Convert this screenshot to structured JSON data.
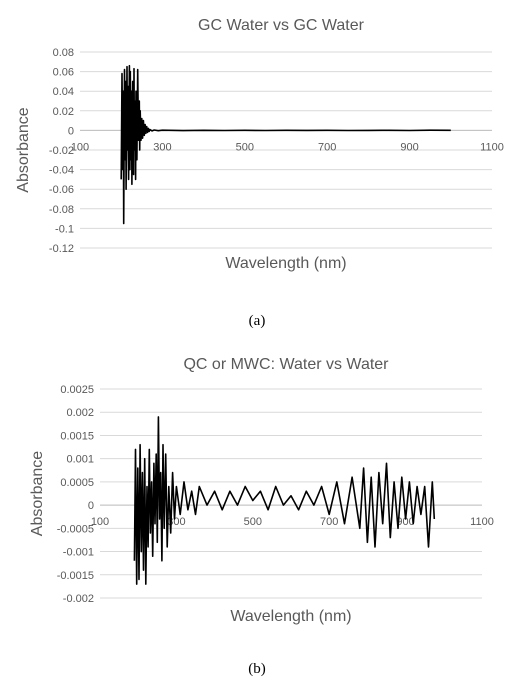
{
  "chart_data": [
    {
      "type": "line",
      "title": "GC Water vs GC Water",
      "xlabel": "Wavelength (nm)",
      "ylabel": "Absorbance",
      "caption": "(a)",
      "xlim": [
        100,
        1100
      ],
      "ylim": [
        -0.12,
        0.08
      ],
      "xticks": [
        100,
        300,
        500,
        700,
        900,
        1100
      ],
      "xtick_labels": [
        "100",
        "300",
        "500",
        "700",
        "900",
        "1100"
      ],
      "yticks": [
        -0.12,
        -0.1,
        -0.08,
        -0.06,
        -0.04,
        -0.02,
        0,
        0.02,
        0.04,
        0.06,
        0.08
      ],
      "ytick_labels": [
        "-0.12",
        "-0.1",
        "-0.08",
        "-0.06",
        "-0.04",
        "-0.02",
        "0",
        "0.02",
        "0.04",
        "0.06",
        "0.08"
      ],
      "grid": true,
      "series": [
        {
          "x": [
            200,
            202,
            204,
            205,
            206,
            208,
            210,
            211,
            212,
            214,
            215,
            216,
            218,
            220,
            221,
            222,
            224,
            225,
            226,
            228,
            230,
            231,
            232,
            234,
            235,
            236,
            238,
            240,
            242,
            244,
            245,
            246,
            248,
            250,
            252,
            254,
            256,
            258,
            260,
            262,
            264,
            266,
            268,
            270,
            275,
            280,
            290,
            300,
            350,
            400,
            450,
            500,
            550,
            600,
            650,
            700,
            750,
            800,
            850,
            900,
            950,
            1000
          ],
          "values": [
            -0.05,
            0.058,
            -0.04,
            0.04,
            -0.095,
            0.062,
            -0.03,
            0.05,
            -0.06,
            0.065,
            -0.02,
            0.045,
            -0.05,
            0.066,
            -0.04,
            0.06,
            -0.03,
            0.04,
            -0.055,
            0.05,
            -0.045,
            0.063,
            -0.02,
            0.03,
            -0.05,
            0.04,
            -0.03,
            0.062,
            -0.01,
            0.03,
            -0.02,
            0.02,
            -0.01,
            0.012,
            -0.008,
            0.01,
            -0.005,
            0.006,
            -0.003,
            0.004,
            -0.002,
            0.002,
            -0.001,
            0.0008,
            -0.0005,
            0.0004,
            -0.0003,
            0.0002,
            -0.0002,
            0.0001,
            -0.0001,
            0.0001,
            -0.0001,
            0.0001,
            0,
            0.0001,
            -0.0001,
            0,
            0.0001,
            -0.0001,
            0.0002,
            0.0001
          ]
        }
      ]
    },
    {
      "type": "line",
      "title": "QC or MWC: Water vs Water",
      "xlabel": "Wavelength (nm)",
      "ylabel": "Absorbance",
      "caption": "(b)",
      "xlim": [
        100,
        1100
      ],
      "ylim": [
        -0.002,
        0.0025
      ],
      "xticks": [
        100,
        300,
        500,
        700,
        900,
        1100
      ],
      "xtick_labels": [
        "100",
        "300",
        "500",
        "700",
        "900",
        "1100"
      ],
      "yticks": [
        -0.002,
        -0.0015,
        -0.001,
        -0.0005,
        0,
        0.0005,
        0.001,
        0.0015,
        0.002,
        0.0025
      ],
      "ytick_labels": [
        "-0.002",
        "-0.0015",
        "-0.001",
        "-0.0005",
        "0",
        "0.0005",
        "0.001",
        "0.0015",
        "0.002",
        "0.0025"
      ],
      "grid": true,
      "series": [
        {
          "x": [
            190,
            193,
            196,
            199,
            202,
            205,
            208,
            211,
            214,
            217,
            220,
            223,
            226,
            229,
            232,
            235,
            238,
            241,
            244,
            247,
            250,
            253,
            256,
            259,
            262,
            265,
            268,
            272,
            276,
            280,
            285,
            290,
            295,
            300,
            310,
            320,
            330,
            340,
            350,
            360,
            380,
            400,
            420,
            440,
            460,
            480,
            500,
            520,
            540,
            560,
            580,
            600,
            620,
            640,
            660,
            680,
            700,
            720,
            740,
            760,
            780,
            790,
            800,
            810,
            820,
            830,
            840,
            850,
            860,
            870,
            880,
            890,
            900,
            910,
            920,
            930,
            940,
            950,
            960,
            970,
            975
          ],
          "values": [
            -0.0012,
            0.0012,
            -0.0017,
            0.0008,
            -0.0016,
            0.0013,
            -0.001,
            0.0007,
            -0.0014,
            0.001,
            -0.0017,
            0.0004,
            -0.0009,
            0.0012,
            -0.0006,
            0.0005,
            -0.0011,
            0.0009,
            -0.0004,
            0.0011,
            -0.0008,
            0.0019,
            -0.0003,
            0.0007,
            -0.0012,
            0.0013,
            -0.0005,
            0.0011,
            -0.0009,
            0.0004,
            -0.0006,
            0.0007,
            -0.0003,
            0.0004,
            -0.0002,
            0.0005,
            -0.0001,
            0.0003,
            -0.0002,
            0.0004,
            0,
            0.0003,
            -0.0001,
            0.0003,
            0,
            0.0004,
            0.0001,
            0.0003,
            -0.0001,
            0.0004,
            0,
            0.0002,
            -0.0001,
            0.0003,
            0,
            0.0004,
            -0.0002,
            0.0005,
            -0.0004,
            0.0006,
            -0.0005,
            0.0008,
            -0.0008,
            0.0006,
            -0.0009,
            0.0007,
            -0.0004,
            0.0009,
            -0.0007,
            0.0005,
            -0.0005,
            0.0006,
            -0.0003,
            0.0005,
            -0.0004,
            0.0004,
            -0.0002,
            0.0004,
            -0.0009,
            0.0005,
            -0.0003
          ]
        }
      ]
    }
  ]
}
